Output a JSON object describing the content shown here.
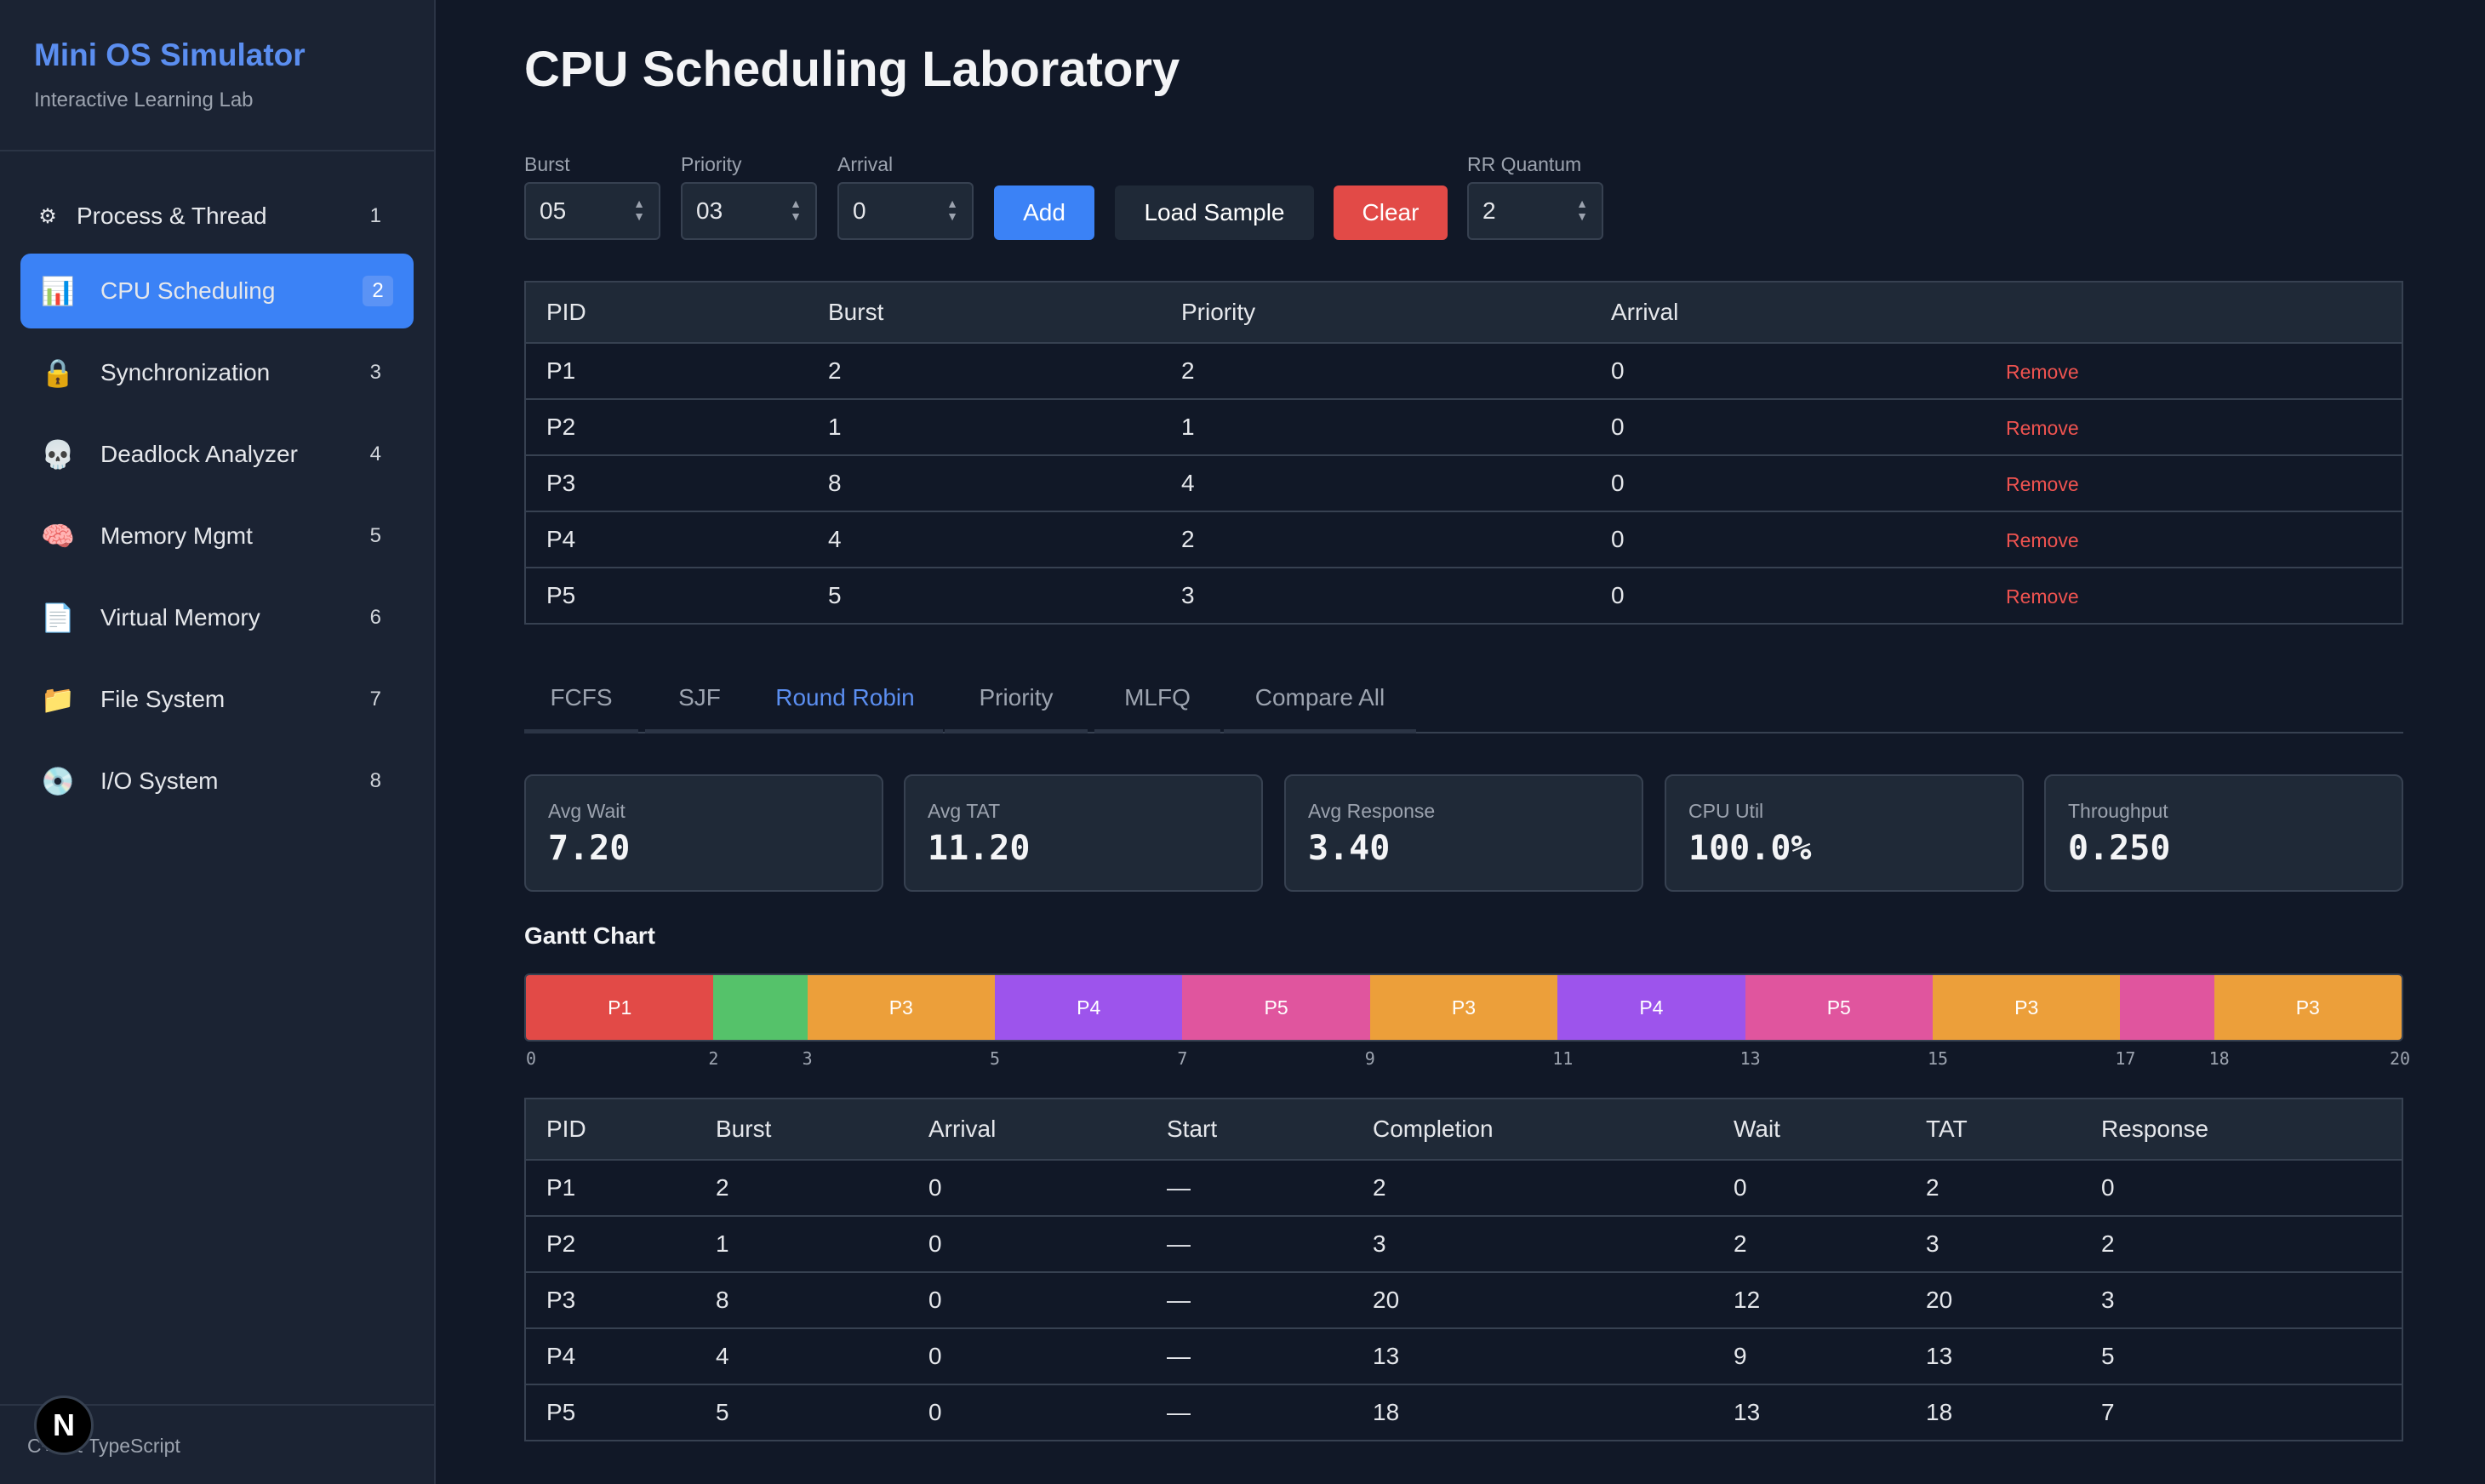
{
  "sidebar": {
    "title": "Mini OS Simulator",
    "subtitle": "Interactive Learning Lab",
    "items": [
      {
        "icon": "gear-icon",
        "glyph": "⚙",
        "label": "Process & Thread",
        "num": "1"
      },
      {
        "icon": "bar-chart-icon",
        "glyph": "📊",
        "label": "CPU Scheduling",
        "num": "2"
      },
      {
        "icon": "lock-icon",
        "glyph": "🔒",
        "label": "Synchronization",
        "num": "3"
      },
      {
        "icon": "skull-icon",
        "glyph": "💀",
        "label": "Deadlock Analyzer",
        "num": "4"
      },
      {
        "icon": "brain-icon",
        "glyph": "🧠",
        "label": "Memory Mgmt",
        "num": "5"
      },
      {
        "icon": "document-icon",
        "glyph": "📄",
        "label": "Virtual Memory",
        "num": "6"
      },
      {
        "icon": "folder-icon",
        "glyph": "📁",
        "label": "File System",
        "num": "7"
      },
      {
        "icon": "disc-icon",
        "glyph": "💿",
        "label": "I/O System",
        "num": "8"
      }
    ],
    "footer": "C++ & TypeScript",
    "badge": "N"
  },
  "main": {
    "title": "CPU Scheduling Laboratory",
    "inputs": {
      "burst_label": "Burst",
      "burst_value": "05",
      "priority_label": "Priority",
      "priority_value": "03",
      "arrival_label": "Arrival",
      "arrival_value": "0",
      "quantum_label": "RR Quantum",
      "quantum_value": "2"
    },
    "buttons": {
      "add": "Add",
      "load_sample": "Load Sample",
      "clear": "Clear"
    },
    "process_table": {
      "headers": [
        "PID",
        "Burst",
        "Priority",
        "Arrival"
      ],
      "remove_label": "Remove",
      "rows": [
        [
          "P1",
          "2",
          "2",
          "0"
        ],
        [
          "P2",
          "1",
          "1",
          "0"
        ],
        [
          "P3",
          "8",
          "4",
          "0"
        ],
        [
          "P4",
          "4",
          "2",
          "0"
        ],
        [
          "P5",
          "5",
          "3",
          "0"
        ]
      ]
    },
    "tabs": [
      "FCFS",
      "SJF",
      "Round Robin",
      "Priority",
      "MLFQ",
      "Compare All"
    ],
    "active_tab": "Round Robin",
    "metrics": [
      {
        "label": "Avg Wait",
        "value": "7.20"
      },
      {
        "label": "Avg TAT",
        "value": "11.20"
      },
      {
        "label": "Avg Response",
        "value": "3.40"
      },
      {
        "label": "CPU Util",
        "value": "100.0%"
      },
      {
        "label": "Throughput",
        "value": "0.250"
      }
    ],
    "gantt_title": "Gantt Chart",
    "results_table": {
      "headers": [
        "PID",
        "Burst",
        "Arrival",
        "Start",
        "Completion",
        "Wait",
        "TAT",
        "Response"
      ],
      "rows": [
        [
          "P1",
          "2",
          "0",
          "—",
          "2",
          "0",
          "2",
          "0"
        ],
        [
          "P2",
          "1",
          "0",
          "—",
          "3",
          "2",
          "3",
          "2"
        ],
        [
          "P3",
          "8",
          "0",
          "—",
          "20",
          "12",
          "20",
          "3"
        ],
        [
          "P4",
          "4",
          "0",
          "—",
          "13",
          "9",
          "13",
          "5"
        ],
        [
          "P5",
          "5",
          "0",
          "—",
          "18",
          "13",
          "18",
          "7"
        ]
      ]
    }
  },
  "chart_data": {
    "type": "gantt",
    "title": "Gantt Chart",
    "xlim": [
      0,
      20
    ],
    "tick_labels": [
      "0",
      "2",
      "3",
      "5",
      "7",
      "9",
      "11",
      "13",
      "15",
      "17",
      "18",
      "20"
    ],
    "segments": [
      {
        "label": "P1",
        "start": 0,
        "end": 2,
        "color": "#e24a47"
      },
      {
        "label": "",
        "start": 2,
        "end": 3,
        "color": "#55c26a"
      },
      {
        "label": "P3",
        "start": 3,
        "end": 5,
        "color": "#ec9f3a"
      },
      {
        "label": "P4",
        "start": 5,
        "end": 7,
        "color": "#9d54ec"
      },
      {
        "label": "P5",
        "start": 7,
        "end": 9,
        "color": "#e0559e"
      },
      {
        "label": "P3",
        "start": 9,
        "end": 11,
        "color": "#ec9f3a"
      },
      {
        "label": "P4",
        "start": 11,
        "end": 13,
        "color": "#9d54ec"
      },
      {
        "label": "P5",
        "start": 13,
        "end": 15,
        "color": "#e0559e"
      },
      {
        "label": "P3",
        "start": 15,
        "end": 17,
        "color": "#ec9f3a"
      },
      {
        "label": "",
        "start": 17,
        "end": 18,
        "color": "#e0559e"
      },
      {
        "label": "P3",
        "start": 18,
        "end": 20,
        "color": "#ec9f3a"
      }
    ]
  },
  "colors": {
    "accent": "#3b82f6",
    "danger": "#e24a47",
    "background": "#111827",
    "sidebar": "#1b2333"
  }
}
